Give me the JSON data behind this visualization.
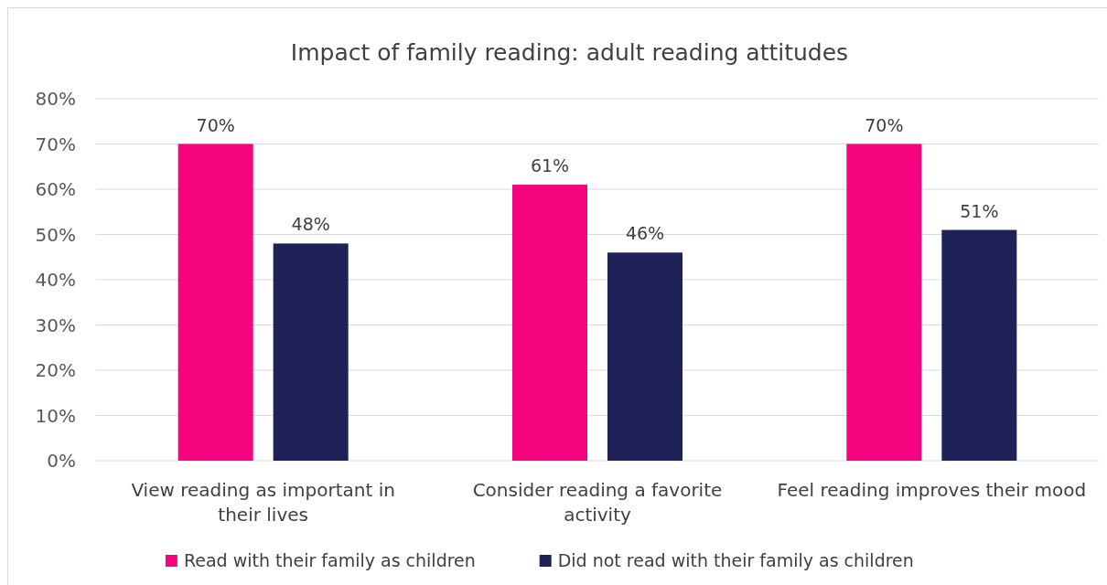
{
  "chart_data": {
    "type": "bar",
    "title": "Impact of family reading: adult reading attitudes",
    "categories": [
      "View reading as important in their lives",
      "Consider reading a favorite activity",
      "Feel reading improves their mood"
    ],
    "series": [
      {
        "name": "Read with their family as children",
        "color": "#f5047f",
        "values": [
          70,
          61,
          70
        ],
        "value_labels": [
          "70%",
          "61%",
          "70%"
        ]
      },
      {
        "name": "Did not read with their family as children",
        "color": "#1f2257",
        "values": [
          48,
          46,
          51
        ],
        "value_labels": [
          "48%",
          "46%",
          "51%"
        ]
      }
    ],
    "ylim": [
      0,
      80
    ],
    "yticks": [
      {
        "value": 0,
        "label": "0%"
      },
      {
        "value": 10,
        "label": "10%"
      },
      {
        "value": 20,
        "label": "20%"
      },
      {
        "value": 30,
        "label": "30%"
      },
      {
        "value": 40,
        "label": "40%"
      },
      {
        "value": 50,
        "label": "50%"
      },
      {
        "value": 60,
        "label": "60%"
      },
      {
        "value": 70,
        "label": "70%"
      },
      {
        "value": 80,
        "label": "80%"
      }
    ],
    "grid": "y",
    "legend": "bottom"
  }
}
